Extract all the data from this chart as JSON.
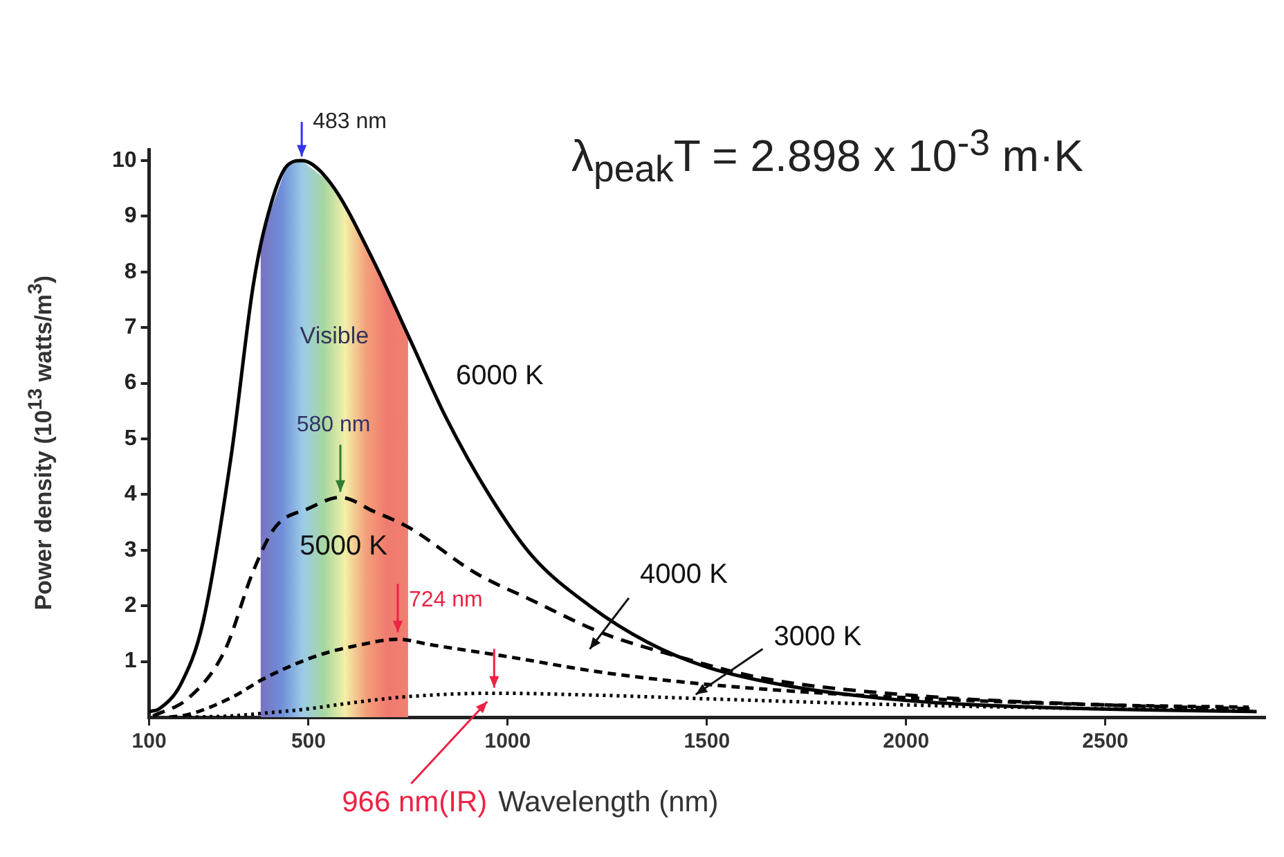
{
  "chart_data": {
    "type": "line",
    "xlabel": "Wavelength (nm)",
    "ylabel": "Power density (10$^{13}$ watts/m$^{3}$)",
    "xlim": [
      100,
      2900
    ],
    "xticks": [
      100,
      500,
      1000,
      1500,
      2000,
      2500
    ],
    "ylim": [
      0,
      10.2
    ],
    "yticks": [
      1,
      2,
      3,
      4,
      5,
      6,
      7,
      8,
      9,
      10
    ],
    "grid": false,
    "legend": false,
    "marker": "none",
    "series": [
      {
        "name": "6000 K",
        "color": "#000000",
        "line_style": "solid",
        "x": [
          100,
          125,
          180,
          235,
          306,
          360,
          390,
          445,
          483,
          555,
          663,
          754,
          844,
          953,
          1061,
          1206,
          1350,
          1500,
          1713,
          2000,
          2360,
          2880
        ],
        "values": [
          0.1,
          0.15,
          0.6,
          1.7,
          4.7,
          7.7,
          8.8,
          9.9,
          10,
          9.6,
          8.2,
          6.8,
          5.4,
          4.0,
          2.9,
          2.0,
          1.35,
          0.9,
          0.55,
          0.3,
          0.17,
          0.1
        ]
      },
      {
        "name": "5000 K",
        "color": "#000000",
        "line_style": "dashed",
        "x": [
          110,
          200,
          290,
          360,
          415,
          500,
          580,
          663,
          754,
          917,
          1061,
          1242,
          1422,
          1640,
          2000,
          2500,
          2870
        ],
        "values": [
          0.02,
          0.35,
          1.2,
          2.6,
          3.4,
          3.75,
          3.95,
          3.7,
          3.4,
          2.6,
          2.1,
          1.5,
          1.1,
          0.7,
          0.4,
          0.22,
          0.15
        ]
      },
      {
        "name": "4000 K",
        "color": "#000000",
        "line_style": "dashed",
        "x": [
          150,
          200,
          306,
          390,
          520,
          630,
          724,
          808,
          989,
          1242,
          1530,
          2000,
          2500,
          2860
        ],
        "values": [
          0,
          0.05,
          0.35,
          0.7,
          1.1,
          1.3,
          1.4,
          1.3,
          1.1,
          0.8,
          0.57,
          0.35,
          0.22,
          0.18
        ]
      },
      {
        "name": "3000 K",
        "color": "#000000",
        "line_style": "dotted",
        "x": [
          200,
          300,
          400,
          500,
          600,
          750,
          966,
          1200,
          1500,
          2000,
          2500,
          2850
        ],
        "values": [
          0,
          0.02,
          0.08,
          0.15,
          0.25,
          0.37,
          0.43,
          0.4,
          0.33,
          0.22,
          0.15,
          0.12
        ]
      }
    ],
    "bands": [
      {
        "axis": "x",
        "from": 380,
        "to": 750,
        "label": "Visible"
      }
    ],
    "annotations": [
      {
        "text": "483 nm",
        "x": 483,
        "y": 10
      },
      {
        "text": "580 nm",
        "x": 580,
        "y": 3.95
      },
      {
        "text": "724 nm",
        "x": 724,
        "y": 1.4
      },
      {
        "text": "966 nm(IR)",
        "x": 966,
        "y": 0.43
      },
      "λ$_{peak}$T = 2.898  x 10$^{-3}$ m·K"
    ]
  }
}
